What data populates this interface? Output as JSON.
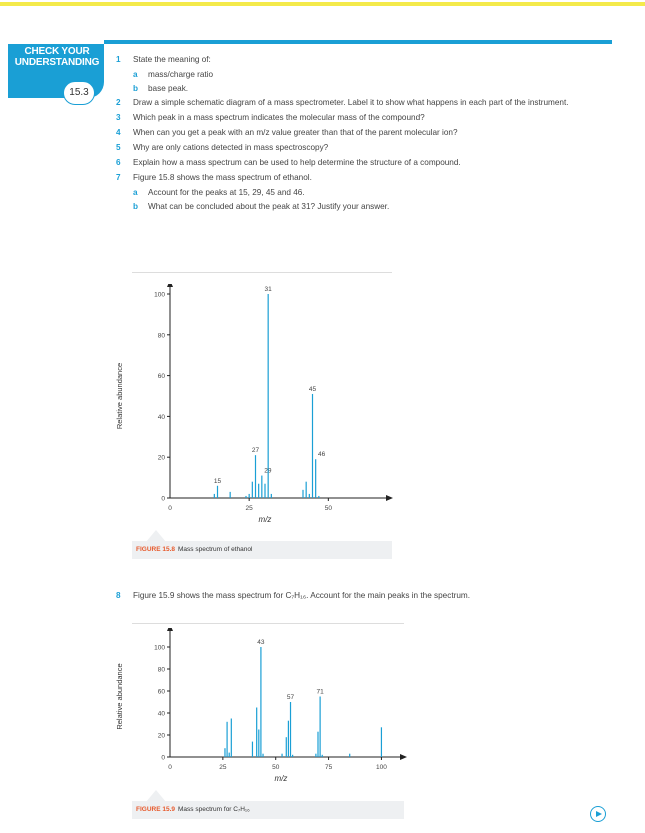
{
  "badge": {
    "title": "CHECK YOUR UNDERSTANDING",
    "number": "15.3"
  },
  "questions": [
    {
      "num": "1",
      "text": "State the meaning of:",
      "subs": [
        {
          "num": "a",
          "text": "mass/charge ratio"
        },
        {
          "num": "b",
          "text": "base peak."
        }
      ]
    },
    {
      "num": "2",
      "text": "Draw a simple schematic diagram of a mass spectrometer. Label it to show what happens in each part of the instrument."
    },
    {
      "num": "3",
      "text": "Which peak in a mass spectrum indicates the molecular mass of the compound?"
    },
    {
      "num": "4",
      "text": "When can you get a peak with an m/z value greater than that of the parent molecular ion?"
    },
    {
      "num": "5",
      "text": "Why are only cations detected in mass spectroscopy?"
    },
    {
      "num": "6",
      "text": "Explain how a mass spectrum can be used to help determine the structure of a compound."
    },
    {
      "num": "7",
      "text": "Figure 15.8 shows the mass spectrum of ethanol.",
      "subs": [
        {
          "num": "a",
          "text": "Account for the peaks at 15, 29, 45 and 46."
        },
        {
          "num": "b",
          "text": "What can be concluded about the peak at 31? Justify your answer."
        }
      ]
    }
  ],
  "question8": {
    "num": "8",
    "text": "Figure 15.9 shows the mass spectrum for C₇H₁₆. Account for the main peaks in the spectrum."
  },
  "fig1": {
    "label": "FIGURE 15.8",
    "caption": "Mass spectrum of ethanol"
  },
  "fig2": {
    "label": "FIGURE 15.9",
    "caption": "Mass spectrum for C₇H₁₆"
  },
  "chart_data": [
    {
      "type": "bar",
      "title": "",
      "xlabel": "m/z",
      "ylabel": "Relative abundance",
      "xlim": [
        0,
        60
      ],
      "ylim": [
        0,
        100
      ],
      "xticks": [
        0,
        25,
        50
      ],
      "yticks": [
        0,
        20,
        40,
        60,
        80,
        100
      ],
      "color": "#1a9fd5",
      "peaks": [
        {
          "x": 14,
          "y": 2
        },
        {
          "x": 15,
          "y": 6,
          "label": "15"
        },
        {
          "x": 19,
          "y": 3
        },
        {
          "x": 24,
          "y": 1
        },
        {
          "x": 25,
          "y": 2
        },
        {
          "x": 26,
          "y": 8
        },
        {
          "x": 27,
          "y": 21,
          "label": "27"
        },
        {
          "x": 28,
          "y": 7
        },
        {
          "x": 29,
          "y": 11,
          "label": "29"
        },
        {
          "x": 30,
          "y": 7
        },
        {
          "x": 31,
          "y": 100,
          "label": "31"
        },
        {
          "x": 32,
          "y": 2
        },
        {
          "x": 42,
          "y": 4
        },
        {
          "x": 43,
          "y": 8
        },
        {
          "x": 44,
          "y": 2
        },
        {
          "x": 45,
          "y": 51,
          "label": "45"
        },
        {
          "x": 46,
          "y": 19,
          "label": "46"
        },
        {
          "x": 47,
          "y": 1
        }
      ]
    },
    {
      "type": "bar",
      "title": "",
      "xlabel": "m/z",
      "ylabel": "Relative abundance",
      "xlim": [
        0,
        105
      ],
      "ylim": [
        0,
        110
      ],
      "xticks": [
        0,
        25,
        50,
        75,
        100
      ],
      "yticks": [
        0,
        20,
        40,
        60,
        80,
        100
      ],
      "color": "#1a9fd5",
      "peaks": [
        {
          "x": 26,
          "y": 8
        },
        {
          "x": 27,
          "y": 32
        },
        {
          "x": 28,
          "y": 4
        },
        {
          "x": 29,
          "y": 35
        },
        {
          "x": 39,
          "y": 14
        },
        {
          "x": 41,
          "y": 45
        },
        {
          "x": 42,
          "y": 25
        },
        {
          "x": 43,
          "y": 100,
          "label": "43"
        },
        {
          "x": 44,
          "y": 3
        },
        {
          "x": 53,
          "y": 3
        },
        {
          "x": 55,
          "y": 18
        },
        {
          "x": 56,
          "y": 33
        },
        {
          "x": 57,
          "y": 50,
          "label": "57"
        },
        {
          "x": 58,
          "y": 2
        },
        {
          "x": 69,
          "y": 3
        },
        {
          "x": 70,
          "y": 23
        },
        {
          "x": 71,
          "y": 55,
          "label": "71"
        },
        {
          "x": 72,
          "y": 2
        },
        {
          "x": 85,
          "y": 3
        },
        {
          "x": 100,
          "y": 27
        }
      ]
    }
  ]
}
